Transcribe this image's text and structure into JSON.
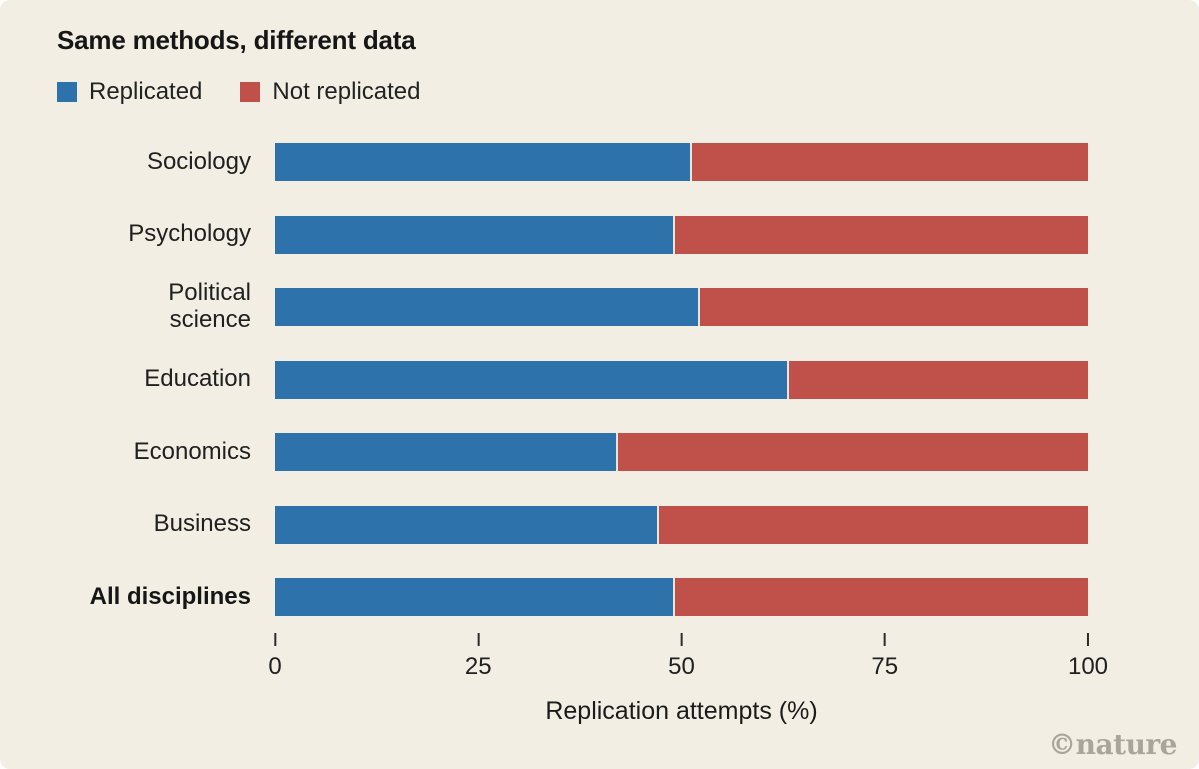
{
  "title": "Same methods, different data",
  "legend": {
    "replicated_label": "Replicated",
    "not_replicated_label": "Not replicated"
  },
  "chart_data": {
    "type": "bar",
    "stacked": true,
    "orientation": "horizontal",
    "categories": [
      "Sociology",
      "Psychology",
      "Political\nscience",
      "Education",
      "Economics",
      "Business",
      "All disciplines"
    ],
    "series": [
      {
        "name": "Replicated",
        "color": "#2e72ab",
        "values": [
          51,
          49,
          52,
          63,
          42,
          47,
          49
        ]
      },
      {
        "name": "Not replicated",
        "color": "#c0504a",
        "values": [
          49,
          51,
          48,
          37,
          58,
          53,
          51
        ]
      }
    ],
    "title": "Same methods, different data",
    "xlabel": "Replication attempts (%)",
    "xticks": [
      0,
      25,
      50,
      75,
      100
    ],
    "xlim": [
      0,
      100
    ],
    "grid": false,
    "legend_position": "top-left",
    "emphasized_category": "All disciplines"
  },
  "axis": {
    "xlabel": "Replication attempts (%)"
  },
  "watermark": "©nature",
  "colors": {
    "blue": "#2e72ab",
    "red": "#c0504a",
    "background": "#f2eee3",
    "text": "#1f1f1f",
    "watermark": "#a9a59c"
  }
}
